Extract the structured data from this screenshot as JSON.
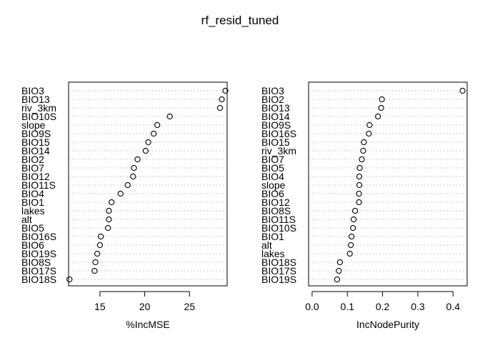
{
  "title": "rf_resid_tuned",
  "chart_data": [
    {
      "type": "scatter",
      "subtype": "dotchart",
      "xlabel": "%IncMSE",
      "xlim": [
        11.5,
        29.2
      ],
      "xticks": [
        15,
        20,
        25
      ],
      "categories": [
        "BIO3",
        "BIO13",
        "riv_3km",
        "BIO10S",
        "slope",
        "BIO9S",
        "BIO15",
        "BIO14",
        "BIO2",
        "BIO7",
        "BIO12",
        "BIO11S",
        "BIO4",
        "BIO1",
        "lakes",
        "alt",
        "BIO5",
        "BIO16S",
        "BIO6",
        "BIO19S",
        "BIO8S",
        "BIO17S",
        "BIO18S"
      ],
      "values": [
        29.0,
        28.6,
        28.4,
        22.8,
        21.4,
        21.0,
        20.4,
        20.1,
        19.2,
        18.8,
        18.7,
        18.1,
        17.3,
        16.3,
        16.0,
        16.0,
        15.9,
        15.1,
        15.0,
        14.7,
        14.5,
        14.4,
        11.6
      ],
      "grid": true
    },
    {
      "type": "scatter",
      "subtype": "dotchart",
      "xlabel": "IncNodePurity",
      "xlim": [
        -0.01,
        0.44
      ],
      "xticks": [
        0.0,
        0.1,
        0.2,
        0.3,
        0.4
      ],
      "categories": [
        "BIO3",
        "BIO2",
        "BIO13",
        "BIO14",
        "BIO9S",
        "BIO16S",
        "BIO15",
        "riv_3km",
        "BIO7",
        "BIO5",
        "BIO4",
        "slope",
        "BIO6",
        "BIO12",
        "BIO8S",
        "BIO11S",
        "BIO10S",
        "BIO1",
        "alt",
        "lakes",
        "BIO18S",
        "BIO17S",
        "BIO19S"
      ],
      "values": [
        0.427,
        0.198,
        0.196,
        0.187,
        0.163,
        0.161,
        0.147,
        0.145,
        0.141,
        0.135,
        0.134,
        0.134,
        0.133,
        0.133,
        0.122,
        0.118,
        0.116,
        0.112,
        0.11,
        0.107,
        0.079,
        0.076,
        0.071
      ],
      "grid": true
    }
  ]
}
